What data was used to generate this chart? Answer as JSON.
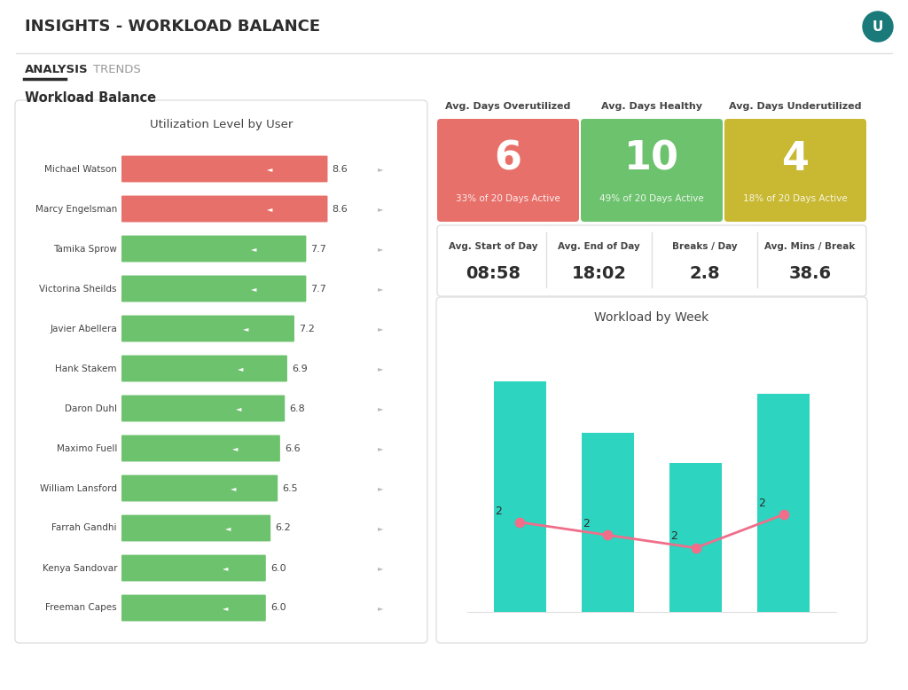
{
  "title": "INSIGHTS - WORKLOAD BALANCE",
  "tabs": [
    "ANALYSIS",
    "TRENDS"
  ],
  "active_tab": "ANALYSIS",
  "left_panel_title": "Workload Balance",
  "chart_title": "Utilization Level by User",
  "users": [
    {
      "name": "Michael Watson",
      "value": 8.6,
      "color": "#e8706a"
    },
    {
      "name": "Marcy Engelsman",
      "value": 8.6,
      "color": "#e8706a"
    },
    {
      "name": "Tamika Sprow",
      "value": 7.7,
      "color": "#6dc26d"
    },
    {
      "name": "Victorina Sheilds",
      "value": 7.7,
      "color": "#6dc26d"
    },
    {
      "name": "Javier Abellera",
      "value": 7.2,
      "color": "#6dc26d"
    },
    {
      "name": "Hank Stakem",
      "value": 6.9,
      "color": "#6dc26d"
    },
    {
      "name": "Daron Duhl",
      "value": 6.8,
      "color": "#6dc26d"
    },
    {
      "name": "Maximo Fuell",
      "value": 6.6,
      "color": "#6dc26d"
    },
    {
      "name": "William Lansford",
      "value": 6.5,
      "color": "#6dc26d"
    },
    {
      "name": "Farrah Gandhi",
      "value": 6.2,
      "color": "#6dc26d"
    },
    {
      "name": "Kenya Sandovar",
      "value": 6.0,
      "color": "#6dc26d"
    },
    {
      "name": "Freeman Capes",
      "value": 6.0,
      "color": "#6dc26d"
    }
  ],
  "stat_card_labels": [
    "Avg. Days Overutilized",
    "Avg. Days Healthy",
    "Avg. Days Underutilized"
  ],
  "stat_cards": [
    {
      "label": "Avg. Days Overutilized",
      "value": "6",
      "sub": "33% of 20 Days Active",
      "color": "#e8706a"
    },
    {
      "label": "Avg. Days Healthy",
      "value": "10",
      "sub": "49% of 20 Days Active",
      "color": "#6dc26d"
    },
    {
      "label": "Avg. Days Underutilized",
      "value": "4",
      "sub": "18% of 20 Days Active",
      "color": "#c8b832"
    }
  ],
  "metrics": [
    {
      "label": "Avg. Start of Day",
      "value": "08:58"
    },
    {
      "label": "Avg. End of Day",
      "value": "18:02"
    },
    {
      "label": "Breaks / Day",
      "value": "2.8"
    },
    {
      "label": "Avg. Mins / Break",
      "value": "38.6"
    }
  ],
  "workload_week_title": "Workload by Week",
  "week_bars": [
    9.0,
    7.0,
    5.8,
    8.5
  ],
  "week_line_y": [
    3.5,
    3.0,
    2.5,
    3.8
  ],
  "week_line_labels": [
    "2",
    "2",
    "2",
    "2"
  ],
  "bar_color": "#2dd4bf",
  "line_color": "#f06e8a",
  "bg_color": "#ffffff",
  "border_color": "#e0e0e0",
  "title_color": "#2d2d2d",
  "text_color": "#444444",
  "tab_active_color": "#2d2d2d",
  "tab_inactive_color": "#999999",
  "user_avatar_bg": "#1a7a7a"
}
